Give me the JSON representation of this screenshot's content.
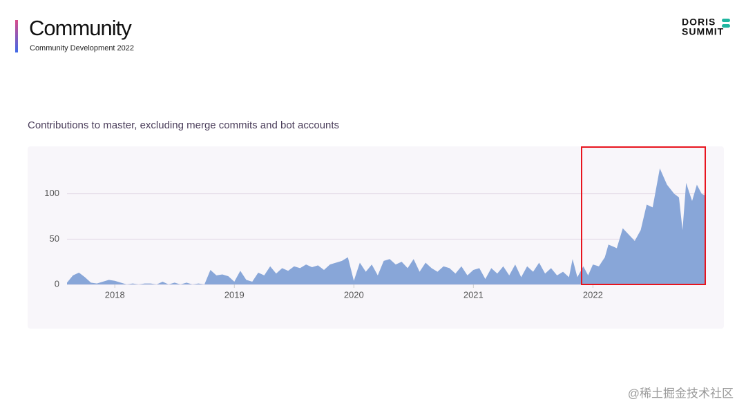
{
  "header": {
    "title": "Community",
    "subtitle": "Community Development 2022"
  },
  "logo": {
    "line1": "DORIS",
    "line2": "SUMMIT"
  },
  "watermark": "@稀土掘金技术社区",
  "chart_data": {
    "type": "area",
    "title": "Contributions to master, excluding merge commits and bot accounts",
    "x": [
      2017.6,
      2017.65,
      2017.7,
      2017.75,
      2017.8,
      2017.85,
      2017.9,
      2017.95,
      2018.0,
      2018.05,
      2018.1,
      2018.15,
      2018.2,
      2018.25,
      2018.3,
      2018.35,
      2018.4,
      2018.45,
      2018.5,
      2018.55,
      2018.6,
      2018.65,
      2018.7,
      2018.75,
      2018.8,
      2018.85,
      2018.9,
      2018.95,
      2019.0,
      2019.05,
      2019.1,
      2019.15,
      2019.2,
      2019.25,
      2019.3,
      2019.35,
      2019.4,
      2019.45,
      2019.5,
      2019.55,
      2019.6,
      2019.65,
      2019.7,
      2019.75,
      2019.8,
      2019.85,
      2019.9,
      2019.95,
      2020.0,
      2020.05,
      2020.1,
      2020.15,
      2020.2,
      2020.25,
      2020.3,
      2020.35,
      2020.4,
      2020.45,
      2020.5,
      2020.55,
      2020.6,
      2020.65,
      2020.7,
      2020.75,
      2020.8,
      2020.85,
      2020.9,
      2020.95,
      2021.0,
      2021.05,
      2021.1,
      2021.15,
      2021.2,
      2021.25,
      2021.3,
      2021.35,
      2021.4,
      2021.45,
      2021.5,
      2021.55,
      2021.6,
      2021.65,
      2021.7,
      2021.75,
      2021.8,
      2021.83,
      2021.87,
      2021.92,
      2021.96,
      2022.0,
      2022.05,
      2022.1,
      2022.13,
      2022.2,
      2022.25,
      2022.3,
      2022.35,
      2022.4,
      2022.45,
      2022.5,
      2022.56,
      2022.62,
      2022.68,
      2022.72,
      2022.75,
      2022.78,
      2022.83,
      2022.87,
      2022.91,
      2022.94
    ],
    "values": [
      2,
      10,
      13,
      8,
      2,
      1,
      3,
      5,
      4,
      2,
      0,
      1,
      0,
      1,
      1,
      0,
      3,
      0,
      2,
      0,
      2,
      0,
      1,
      0,
      16,
      10,
      11,
      9,
      3,
      15,
      5,
      3,
      13,
      10,
      20,
      12,
      18,
      15,
      20,
      18,
      22,
      19,
      21,
      16,
      22,
      24,
      26,
      30,
      4,
      24,
      14,
      22,
      10,
      26,
      28,
      22,
      25,
      18,
      28,
      14,
      24,
      18,
      14,
      20,
      18,
      12,
      20,
      10,
      16,
      18,
      6,
      18,
      12,
      20,
      10,
      22,
      8,
      20,
      14,
      24,
      12,
      18,
      10,
      14,
      8,
      28,
      8,
      20,
      10,
      22,
      20,
      30,
      44,
      40,
      62,
      55,
      48,
      60,
      88,
      85,
      128,
      110,
      100,
      96,
      60,
      112,
      92,
      110,
      100,
      98
    ],
    "color": "#88a6d8",
    "xlim": [
      2017.6,
      2022.94
    ],
    "ylim": [
      0,
      150
    ],
    "xticks": [
      2018,
      2019,
      2020,
      2021,
      2022
    ],
    "yticks": [
      0,
      50,
      100
    ],
    "grid": true
  }
}
